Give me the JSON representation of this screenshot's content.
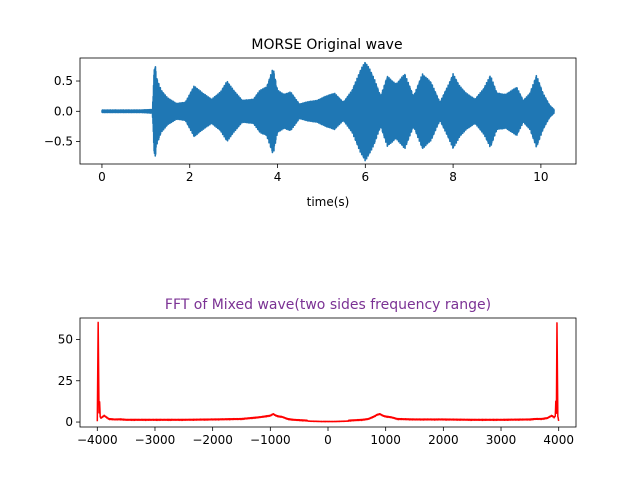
{
  "colors": {
    "wave": "#1f77b4",
    "fft": "#ff0000",
    "fft_title": "#7b3294",
    "axis": "#000000"
  },
  "chart_data": [
    {
      "type": "line",
      "title": "MORSE Original wave",
      "xlabel": "time(s)",
      "ylabel": "",
      "xlim": [
        -0.5,
        10.8
      ],
      "ylim": [
        -0.87,
        0.88
      ],
      "xticks": [
        0,
        2,
        4,
        6,
        8,
        10
      ],
      "xtick_labels": [
        "0",
        "2",
        "4",
        "6",
        "8",
        "10"
      ],
      "yticks": [
        0.5,
        0.0,
        -0.5
      ],
      "ytick_labels": [
        "0.5",
        "0.0",
        "−0.5"
      ],
      "grid": false,
      "series": [
        {
          "t": [
            0.0,
            0.3,
            0.6,
            0.9,
            1.15,
            1.2,
            1.25,
            1.35,
            1.5,
            1.7,
            1.9,
            2.1,
            2.3,
            2.5,
            2.7,
            2.85,
            3.0,
            3.2,
            3.45,
            3.6,
            3.75,
            3.9,
            4.0,
            4.15,
            4.3,
            4.5,
            4.7,
            4.9,
            5.1,
            5.3,
            5.5,
            5.7,
            5.9,
            6.0,
            6.1,
            6.2,
            6.35,
            6.5,
            6.7,
            6.9,
            7.1,
            7.3,
            7.5,
            7.7,
            7.9,
            8.0,
            8.15,
            8.3,
            8.5,
            8.7,
            8.85,
            9.0,
            9.2,
            9.45,
            9.6,
            9.75,
            9.9,
            10.05,
            10.2,
            10.3
          ],
          "amp": [
            0.02,
            0.02,
            0.02,
            0.02,
            0.03,
            0.85,
            0.55,
            0.35,
            0.22,
            0.13,
            0.15,
            0.42,
            0.3,
            0.2,
            0.32,
            0.5,
            0.35,
            0.18,
            0.2,
            0.35,
            0.4,
            0.72,
            0.35,
            0.28,
            0.32,
            0.12,
            0.16,
            0.18,
            0.25,
            0.3,
            0.15,
            0.35,
            0.7,
            0.82,
            0.7,
            0.55,
            0.25,
            0.58,
            0.45,
            0.62,
            0.25,
            0.62,
            0.48,
            0.15,
            0.45,
            0.62,
            0.42,
            0.3,
            0.2,
            0.38,
            0.6,
            0.3,
            0.28,
            0.4,
            0.18,
            0.3,
            0.6,
            0.3,
            0.1,
            0.03
          ]
        }
      ]
    },
    {
      "type": "line",
      "title": "FFT of Mixed wave(two sides frequency range)",
      "xlabel": "",
      "ylabel": "",
      "xlim": [
        -4300,
        4300
      ],
      "ylim": [
        -3,
        63
      ],
      "xticks": [
        -4000,
        -3000,
        -2000,
        -1000,
        0,
        1000,
        2000,
        3000,
        4000
      ],
      "xtick_labels": [
        "−4000",
        "−3000",
        "−2000",
        "−1000",
        "0",
        "1000",
        "2000",
        "3000",
        "4000"
      ],
      "yticks": [
        50,
        25,
        0
      ],
      "ytick_labels": [
        "50",
        "25",
        "0"
      ],
      "grid": false,
      "series": [
        {
          "x": [
            -4000,
            -3985,
            -3970,
            -3960,
            -3950,
            -3940,
            -3920,
            -3880,
            -3800,
            -3700,
            -3600,
            -3500,
            -3000,
            -2500,
            -2000,
            -1500,
            -1200,
            -1100,
            -1000,
            -950,
            -900,
            -850,
            -800,
            -700,
            -600,
            -500,
            -400,
            -300,
            -200,
            -100,
            0,
            100,
            200,
            300,
            400,
            500,
            600,
            700,
            800,
            850,
            900,
            950,
            1000,
            1100,
            1200,
            1500,
            2000,
            2500,
            3000,
            3500,
            3600,
            3700,
            3800,
            3880,
            3920,
            3940,
            3950,
            3960,
            3970,
            3985,
            4000
          ],
          "y": [
            0.5,
            60,
            5,
            12,
            3,
            2,
            2.5,
            3.5,
            1.5,
            1.2,
            1.3,
            1.0,
            1.0,
            1.0,
            1.2,
            1.5,
            2.5,
            3.0,
            3.5,
            4.5,
            3.5,
            3.0,
            2.8,
            1.5,
            1.0,
            0.8,
            0.6,
            0.4,
            0.3,
            0.2,
            0.2,
            0.2,
            0.3,
            0.4,
            0.6,
            0.8,
            1.0,
            1.5,
            3.0,
            4.0,
            4.5,
            3.5,
            3.0,
            2.5,
            1.5,
            1.2,
            1.2,
            1.0,
            1.0,
            1.2,
            1.5,
            1.5,
            2.0,
            3.5,
            2.5,
            3.0,
            12,
            5,
            60,
            3,
            0.5
          ]
        }
      ]
    }
  ]
}
